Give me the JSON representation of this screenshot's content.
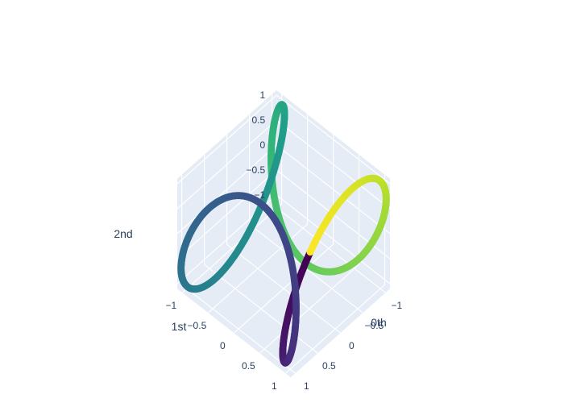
{
  "chart_data": {
    "type": "scatter3d",
    "colorscale": "Viridis",
    "colors": {
      "pane": "#e5ecf6",
      "grid": "#ffffff",
      "text": "#2a3f5f",
      "viridis": [
        "#440154",
        "#482878",
        "#3e4989",
        "#31688e",
        "#26828e",
        "#1f9e89",
        "#35b779",
        "#6ece58",
        "#b5de2b",
        "#fde725"
      ]
    },
    "axes": {
      "x": {
        "title": "0th",
        "range": [
          -1.1,
          1.1
        ],
        "tick_labels": [
          "−1",
          "−0.5",
          "0",
          "0.5",
          "1"
        ],
        "tick_values": [
          -1,
          -0.5,
          0,
          0.5,
          1
        ]
      },
      "y": {
        "title": "1st",
        "range": [
          -1.1,
          1.1
        ],
        "tick_labels": [
          "−1",
          "−0.5",
          "0",
          "0.5",
          "1"
        ],
        "tick_values": [
          -1,
          -0.5,
          0,
          0.5,
          1
        ]
      },
      "z": {
        "title": "2nd",
        "range": [
          -1.1,
          1.1
        ],
        "tick_labels": [
          "−1",
          "−0.5",
          "0",
          "0.5",
          "1"
        ],
        "tick_values": [
          -1,
          -0.5,
          0,
          0.5,
          1
        ]
      }
    },
    "series": [
      {
        "mode": "markers",
        "t_range": [
          0,
          6.2832
        ],
        "points_count": 900,
        "x_function": "sin(t) + 0.5*sin(3t)",
        "y_function": "cos(t) - 0.5*cos(3t)",
        "z_function": "-sin(3t)",
        "color_by": "t"
      }
    ],
    "grid": true,
    "camera_eye": {
      "x": 1.25,
      "y": 1.25,
      "z": 1.25
    }
  }
}
